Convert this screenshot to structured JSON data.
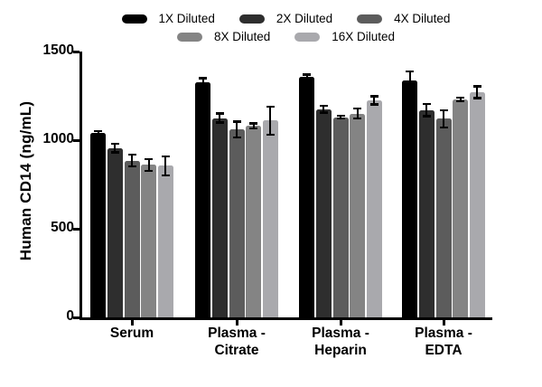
{
  "chart_data": {
    "type": "bar",
    "title": "",
    "ylabel": "Human CD14 (ng/mL)",
    "xlabel": "",
    "ylim": [
      0,
      1500
    ],
    "yticks": [
      0,
      500,
      1000,
      1500
    ],
    "grid": false,
    "legend_position": "top-center",
    "legend_row_split": [
      3,
      2
    ],
    "axis_color": "#000000",
    "background_color": "#ffffff",
    "categories": [
      "Serum",
      "Plasma -\nCitrate",
      "Plasma -\nHeparin",
      "Plasma -\nEDTA"
    ],
    "series": [
      {
        "name": "1X Diluted",
        "color": "#000000",
        "values": [
          1040,
          1325,
          1355,
          1335
        ],
        "errors": [
          12,
          25,
          15,
          55
        ]
      },
      {
        "name": "2X Diluted",
        "color": "#2e2e2e",
        "values": [
          955,
          1125,
          1175,
          1170
        ],
        "errors": [
          25,
          28,
          20,
          35
        ]
      },
      {
        "name": "4X Diluted",
        "color": "#5c5c5c",
        "values": [
          885,
          1060,
          1130,
          1120
        ],
        "errors": [
          35,
          45,
          10,
          50
        ]
      },
      {
        "name": "8X Diluted",
        "color": "#848484",
        "values": [
          860,
          1080,
          1150,
          1230
        ],
        "errors": [
          35,
          15,
          30,
          12
        ]
      },
      {
        "name": "16X Diluted",
        "color": "#a9a9ad",
        "values": [
          855,
          1110,
          1225,
          1270
        ],
        "errors": [
          55,
          80,
          25,
          35
        ]
      }
    ]
  }
}
